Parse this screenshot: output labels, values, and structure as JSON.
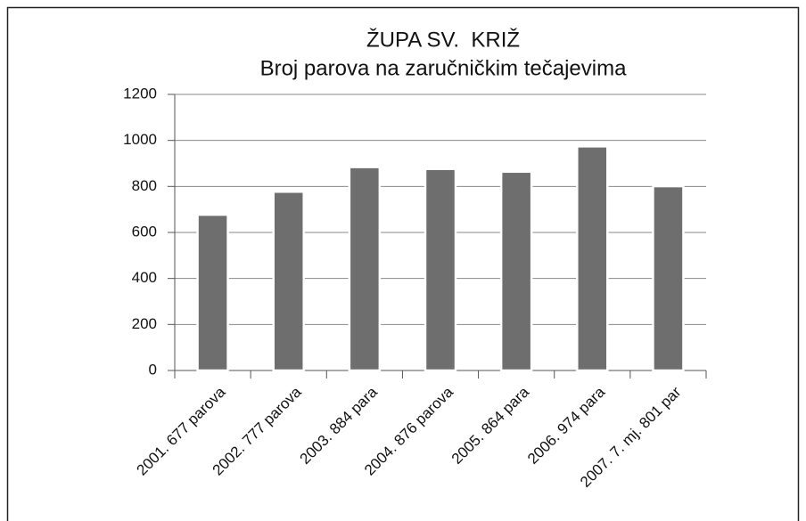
{
  "chart_data": {
    "type": "bar",
    "title": "ŽUPA SV.  KRIŽ",
    "subtitle": "Broj parova na zaručničkim tečajevima",
    "categories": [
      "2001. 677 parova",
      "2002. 777 parova",
      "2003. 884 para",
      "2004. 876 parova",
      "2005. 864 para",
      "2006. 974 para",
      "2007. 7. mj. 801 par"
    ],
    "values": [
      677,
      777,
      884,
      876,
      864,
      974,
      801
    ],
    "color": "#6e6e6e",
    "ylim": [
      0,
      1200
    ],
    "yticks": [
      0,
      200,
      400,
      600,
      800,
      1000,
      1200
    ],
    "grid": true
  }
}
